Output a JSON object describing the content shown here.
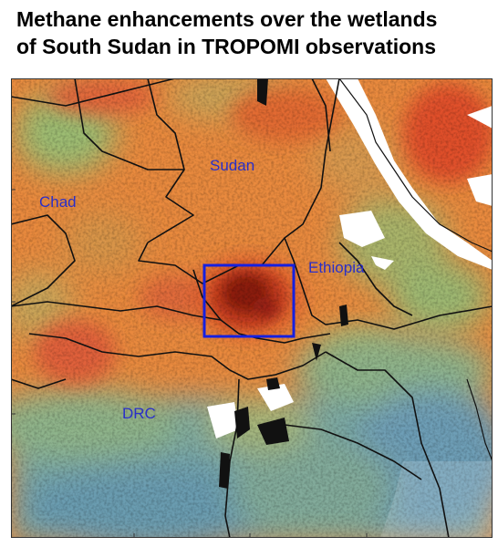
{
  "title_line1": "Methane enhancements over the wetlands",
  "title_line2": "of South Sudan in TROPOMI observations",
  "labels": {
    "sudan": "Sudan",
    "chad": "Chad",
    "ethiopia": "Ethiopia",
    "drc": "DRC"
  },
  "colors": {
    "highlight_box": "#1520e0",
    "label": "#2a2fc8",
    "high_methane": "#e4581c",
    "peak_methane": "#8a1a10",
    "low_methane": "#6aa4b8",
    "no_data": "#ffffff",
    "border": "#111111"
  }
}
